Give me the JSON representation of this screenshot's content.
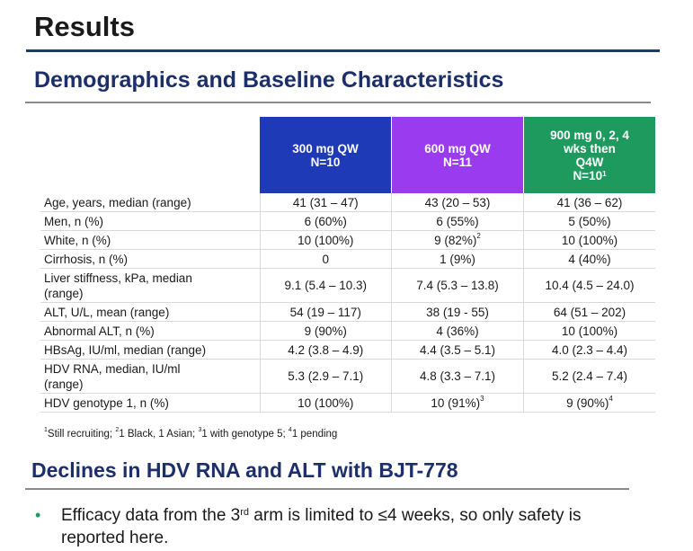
{
  "title": "Results",
  "subtitle": "Demographics and Baseline Characteristics",
  "table": {
    "headers": [
      {
        "lines": [
          "300 mg QW",
          "N=10"
        ],
        "sup": ""
      },
      {
        "lines": [
          "600 mg QW",
          "N=11"
        ],
        "sup": ""
      },
      {
        "lines": [
          "900 mg 0, 2, 4",
          "wks then",
          "Q4W",
          "N=10"
        ],
        "sup": "1"
      }
    ],
    "colors": {
      "col1": "#1f3ab6",
      "col2": "#9b3bef",
      "col3": "#1f9a5f"
    },
    "rows": [
      {
        "label": "Age, years, median (range)",
        "tall": false,
        "cells": [
          {
            "v": "41 (31 – 47)",
            "s": ""
          },
          {
            "v": "43 (20 – 53)",
            "s": ""
          },
          {
            "v": "41 (36 – 62)",
            "s": ""
          }
        ]
      },
      {
        "label": "Men, n (%)",
        "tall": false,
        "cells": [
          {
            "v": "6 (60%)",
            "s": ""
          },
          {
            "v": "6 (55%)",
            "s": ""
          },
          {
            "v": "5 (50%)",
            "s": ""
          }
        ]
      },
      {
        "label": "White, n (%)",
        "tall": false,
        "cells": [
          {
            "v": "10 (100%)",
            "s": ""
          },
          {
            "v": "9 (82%)",
            "s": "2"
          },
          {
            "v": "10 (100%)",
            "s": ""
          }
        ]
      },
      {
        "label": "Cirrhosis, n (%)",
        "tall": false,
        "cells": [
          {
            "v": "0",
            "s": ""
          },
          {
            "v": "1 (9%)",
            "s": ""
          },
          {
            "v": "4 (40%)",
            "s": ""
          }
        ]
      },
      {
        "label": "Liver stiffness, kPa, median (range)",
        "tall": true,
        "cells": [
          {
            "v": "9.1 (5.4 – 10.3)",
            "s": ""
          },
          {
            "v": "7.4 (5.3 – 13.8)",
            "s": ""
          },
          {
            "v": "10.4 (4.5 – 24.0)",
            "s": ""
          }
        ]
      },
      {
        "label": "ALT, U/L, mean (range)",
        "tall": false,
        "cells": [
          {
            "v": "54 (19 – 117)",
            "s": ""
          },
          {
            "v": "38 (19 - 55)",
            "s": ""
          },
          {
            "v": "64 (51 – 202)",
            "s": ""
          }
        ]
      },
      {
        "label": "Abnormal ALT, n (%)",
        "tall": false,
        "cells": [
          {
            "v": "9 (90%)",
            "s": ""
          },
          {
            "v": "4 (36%)",
            "s": ""
          },
          {
            "v": "10 (100%)",
            "s": ""
          }
        ]
      },
      {
        "label": "HBsAg, IU/ml, median (range)",
        "tall": false,
        "cells": [
          {
            "v": "4.2 (3.8 – 4.9)",
            "s": ""
          },
          {
            "v": "4.4 (3.5 – 5.1)",
            "s": ""
          },
          {
            "v": "4.0 (2.3 – 4.4)",
            "s": ""
          }
        ]
      },
      {
        "label": "HDV RNA, median, IU/ml (range)",
        "tall": true,
        "cells": [
          {
            "v": "5.3 (2.9 – 7.1)",
            "s": ""
          },
          {
            "v": "4.8 (3.3 – 7.1)",
            "s": ""
          },
          {
            "v": "5.2  (2.4 – 7.4)",
            "s": ""
          }
        ]
      },
      {
        "label": "HDV genotype 1, n (%)",
        "tall": false,
        "cells": [
          {
            "v": "10 (100%)",
            "s": ""
          },
          {
            "v": "10 (91%)",
            "s": "3"
          },
          {
            "v": "9 (90%)",
            "s": "4"
          }
        ]
      }
    ]
  },
  "footnotes": [
    {
      "num": "1",
      "text": "Still recruiting; "
    },
    {
      "num": "2",
      "text": "1 Black, 1 Asian; "
    },
    {
      "num": "3",
      "text": "1 with genotype 5; "
    },
    {
      "num": "4",
      "text": "1 pending"
    }
  ],
  "section2_title": "Declines in HDV RNA and ALT with BJT-778",
  "bullet": {
    "before": "Efficacy data from the 3",
    "sup": "rd",
    "after": " arm is limited to ≤4 weeks, so only safety is reported here."
  }
}
